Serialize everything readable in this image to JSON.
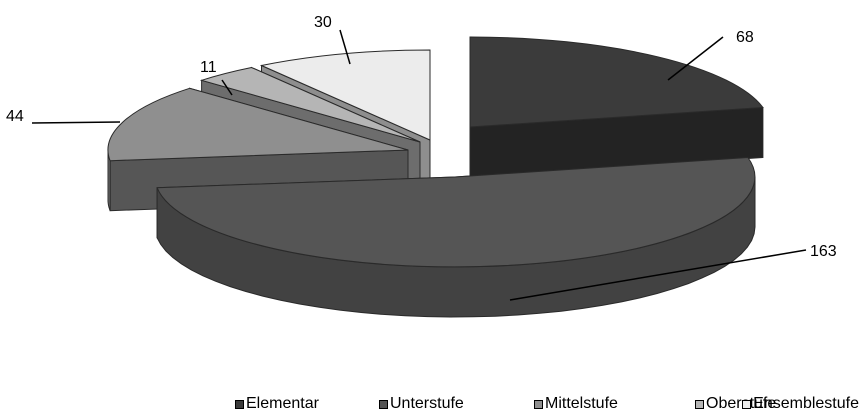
{
  "chart_data": {
    "type": "pie",
    "style": "3d-exploded",
    "title": "",
    "categories": [
      "Elementar",
      "Unterstufe",
      "Mittelstufe",
      "Oberstufe",
      "Ensemblestufe"
    ],
    "values": [
      68,
      163,
      44,
      11,
      30
    ],
    "colors": [
      "#3b3b3b",
      "#555555",
      "#8f8f8f",
      "#b5b5b5",
      "#ececec"
    ],
    "legend": {
      "position": "bottom",
      "entries": [
        "Elementar",
        "Unterstufe",
        "Mittelstufe",
        "Oberstufe",
        "Ensemblestufe"
      ]
    }
  }
}
